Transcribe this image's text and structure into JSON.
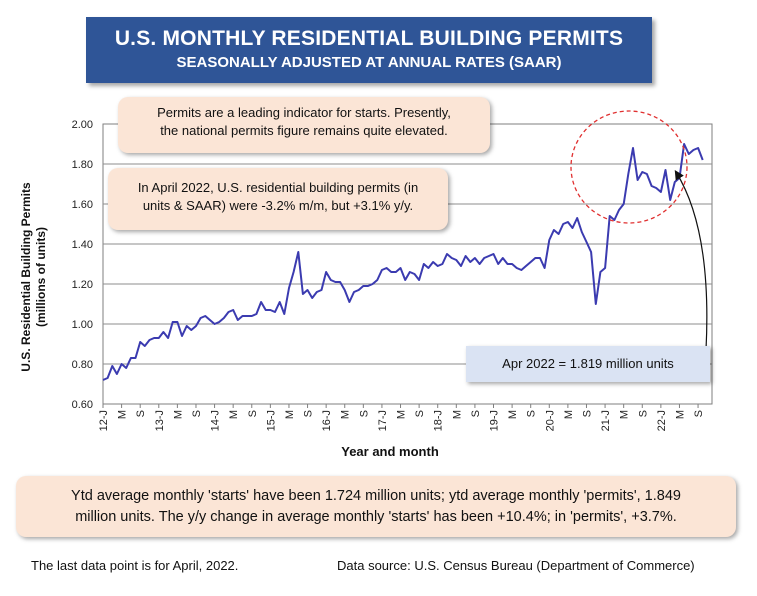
{
  "title": "U.S. MONTHLY RESIDENTIAL BUILDING PERMITS",
  "subtitle": "SEASONALLY ADJUSTED AT ANNUAL RATES (SAAR)",
  "callouts": {
    "indicator_line1": "Permits are a leading indicator for starts. Presently,",
    "indicator_line2": "the national permits figure remains quite elevated.",
    "april_line1": "In April 2022, U.S. residential building permits (in",
    "april_line2": "units & SAAR) were -3.2% m/m, but +3.1% y/y."
  },
  "latest_label": "Apr 2022 = 1.819 million units",
  "summary": {
    "line1": "Ytd average monthly 'starts' have been 1.724 million units; ytd average monthly 'permits', 1.849",
    "line2": "million units. The y/y change in average monthly 'starts' has been +10.4%; in 'permits', +3.7%."
  },
  "footer": {
    "last_point": "The last data point is for April, 2022.",
    "source": "Data source: U.S. Census Bureau (Department of Commerce)"
  },
  "colors": {
    "title_bg": "#2f5597",
    "series": "#3b3bb0",
    "callout_bg": "#fbe5d6",
    "latest_bg": "#dae3f3",
    "highlight_circle": "#e03030"
  },
  "chart_data": {
    "type": "line",
    "xlabel": "Year and month",
    "ylabel_line1": "U.S. Residential Building Permits",
    "ylabel_line2": "(millions of units)",
    "ylim": [
      0.6,
      2.0
    ],
    "yticks": [
      "0.60",
      "0.80",
      "1.00",
      "1.20",
      "1.40",
      "1.60",
      "1.80",
      "2.00"
    ],
    "grid": true,
    "x_tick_labels": [
      "12-J",
      "M",
      "S",
      "13-J",
      "M",
      "S",
      "14-J",
      "M",
      "S",
      "15-J",
      "M",
      "S",
      "16-J",
      "M",
      "S",
      "17-J",
      "M",
      "S",
      "18-J",
      "M",
      "S",
      "19-J",
      "M",
      "S",
      "20-J",
      "M",
      "S",
      "21-J",
      "M",
      "S",
      "22-J",
      "M",
      "S"
    ],
    "x_start": "2012-01",
    "x_months_span": 131,
    "series": [
      {
        "values": [
          0.72,
          0.73,
          0.79,
          0.75,
          0.8,
          0.78,
          0.83,
          0.83,
          0.91,
          0.89,
          0.92,
          0.93,
          0.93,
          0.96,
          0.93,
          1.01,
          1.01,
          0.94,
          0.99,
          0.97,
          0.99,
          1.03,
          1.04,
          1.02,
          1.0,
          1.01,
          1.03,
          1.06,
          1.07,
          1.02,
          1.04,
          1.04,
          1.04,
          1.05,
          1.11,
          1.07,
          1.07,
          1.06,
          1.11,
          1.05,
          1.18,
          1.26,
          1.36,
          1.15,
          1.17,
          1.13,
          1.16,
          1.17,
          1.26,
          1.22,
          1.21,
          1.21,
          1.17,
          1.11,
          1.16,
          1.17,
          1.19,
          1.19,
          1.2,
          1.22,
          1.27,
          1.28,
          1.26,
          1.26,
          1.28,
          1.22,
          1.26,
          1.25,
          1.22,
          1.3,
          1.28,
          1.31,
          1.29,
          1.3,
          1.35,
          1.33,
          1.32,
          1.29,
          1.34,
          1.31,
          1.33,
          1.3,
          1.33,
          1.34,
          1.35,
          1.3,
          1.33,
          1.3,
          1.3,
          1.28,
          1.27,
          1.29,
          1.31,
          1.33,
          1.33,
          1.28,
          1.42,
          1.47,
          1.45,
          1.5,
          1.51,
          1.48,
          1.53,
          1.46,
          1.41,
          1.36,
          1.1,
          1.26,
          1.28,
          1.54,
          1.52,
          1.57,
          1.6,
          1.75,
          1.88,
          1.72,
          1.76,
          1.75,
          1.69,
          1.68,
          1.66,
          1.77,
          1.62,
          1.71,
          1.73,
          1.9,
          1.85,
          1.87,
          1.88,
          1.82
        ]
      }
    ]
  }
}
